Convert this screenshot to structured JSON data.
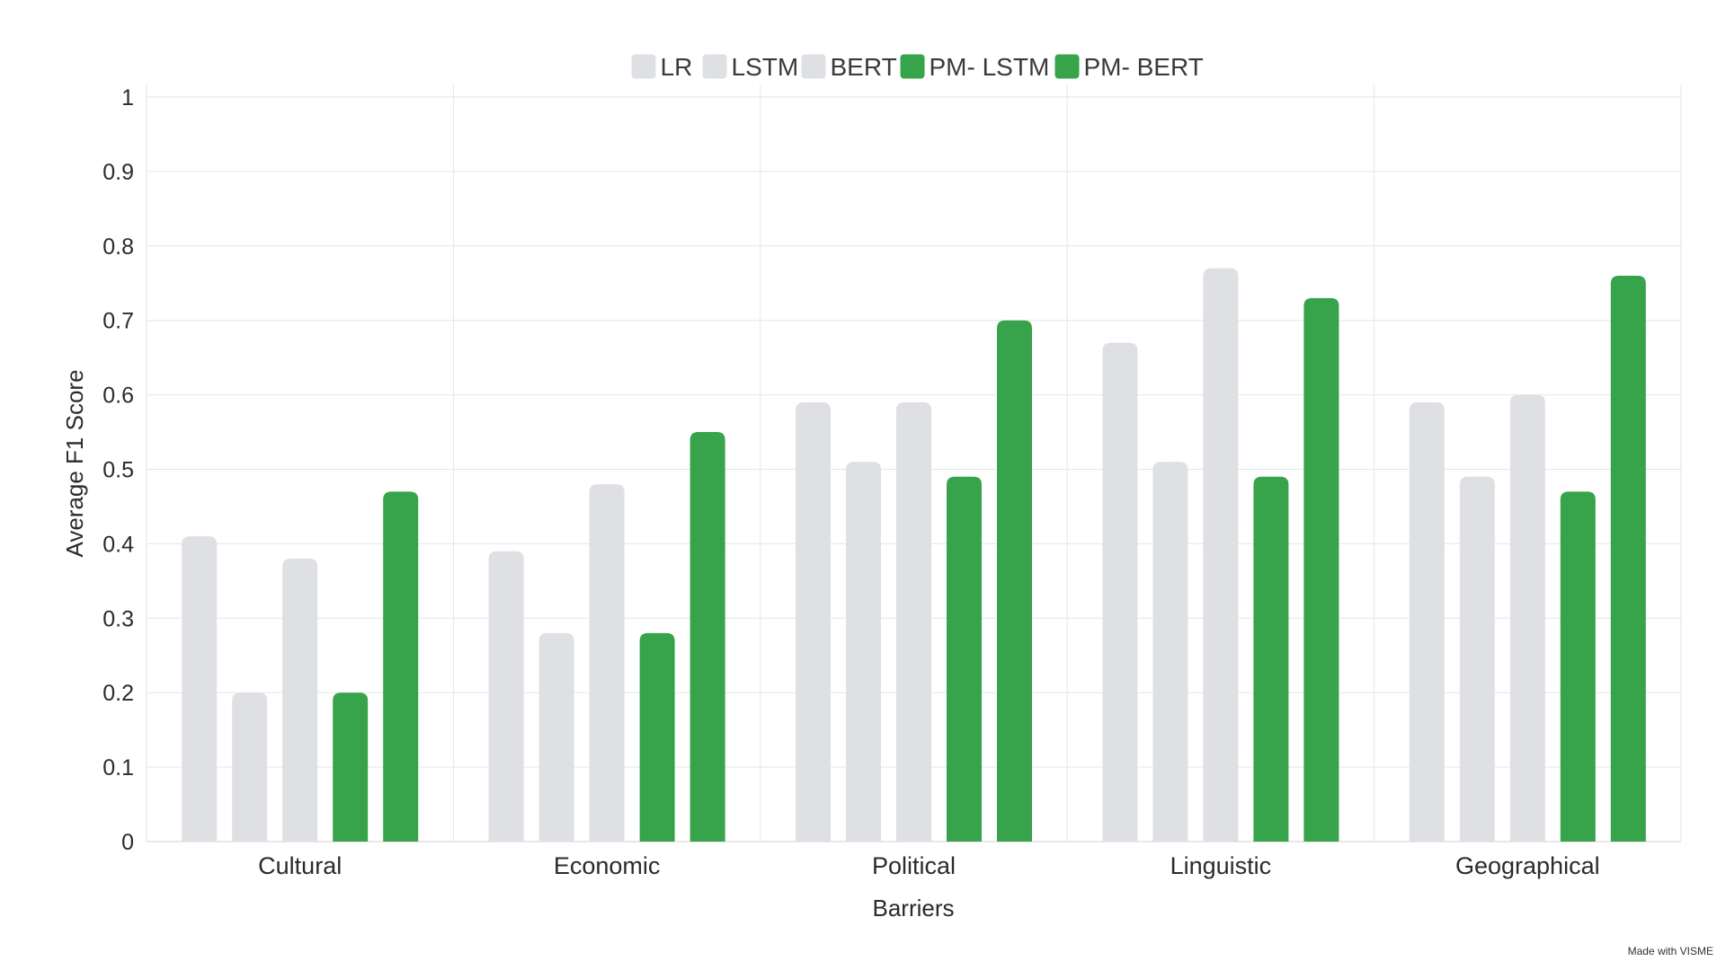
{
  "chart_data": {
    "type": "bar",
    "categories": [
      "Cultural",
      "Economic",
      "Political",
      "Linguistic",
      "Geographical"
    ],
    "series": [
      {
        "name": "LR",
        "color": "#dfe0e4",
        "values": [
          0.41,
          0.39,
          0.59,
          0.67,
          0.59
        ]
      },
      {
        "name": "LSTM",
        "color": "#dfe0e4",
        "values": [
          0.2,
          0.28,
          0.51,
          0.51,
          0.49
        ]
      },
      {
        "name": "BERT",
        "color": "#dfe0e4",
        "values": [
          0.38,
          0.48,
          0.59,
          0.77,
          0.6
        ]
      },
      {
        "name": "PM- LSTM",
        "color": "#37a34a",
        "values": [
          0.2,
          0.28,
          0.49,
          0.49,
          0.47
        ]
      },
      {
        "name": "PM- BERT",
        "color": "#37a34a",
        "values": [
          0.47,
          0.55,
          0.7,
          0.73,
          0.76
        ]
      }
    ],
    "xlabel": "Barriers",
    "ylabel": "Average F1 Score",
    "ylim": [
      0,
      1
    ],
    "yticks": [
      "0",
      "0.1",
      "0.2",
      "0.3",
      "0.4",
      "0.5",
      "0.6",
      "0.7",
      "0.8",
      "0.9",
      "1"
    ],
    "grid": true,
    "legend": "top-center"
  },
  "watermark": "Made with VISME"
}
